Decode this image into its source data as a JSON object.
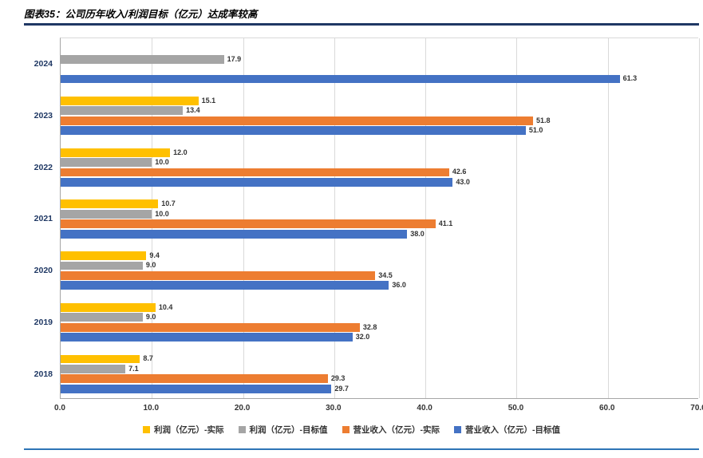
{
  "header": {
    "title": "图表35：公司历年收入/利润目标（亿元）达成率较高"
  },
  "colors": {
    "title_rule": "#1F3864",
    "bottom_rule": "#2E75B6",
    "gridline": "#D9D9D9",
    "axis_line": "#A6A6A6",
    "text_dark": "#333333",
    "cat_text": "#1F3864"
  },
  "chart_data": {
    "type": "bar",
    "orientation": "horizontal",
    "title": "图表35：公司历年收入/利润目标（亿元）达成率较高",
    "categories": [
      "2024",
      "2023",
      "2022",
      "2021",
      "2020",
      "2019",
      "2018"
    ],
    "series": [
      {
        "name": "利润（亿元）-实际",
        "color": "#FFC000",
        "values": [
          null,
          15.1,
          12.0,
          10.7,
          9.4,
          10.4,
          8.7
        ]
      },
      {
        "name": "利润（亿元）-目标值",
        "color": "#A5A5A5",
        "values": [
          17.9,
          13.4,
          10.0,
          10.0,
          9.0,
          9.0,
          7.1
        ]
      },
      {
        "name": "营业收入（亿元）-实际",
        "color": "#ED7D31",
        "values": [
          null,
          51.8,
          42.6,
          41.1,
          34.5,
          32.8,
          29.3
        ]
      },
      {
        "name": "营业收入（亿元）-目标值",
        "color": "#4472C4",
        "values": [
          61.3,
          51.0,
          43.0,
          38.0,
          36.0,
          32.0,
          29.7
        ]
      }
    ],
    "xlim": [
      0,
      70
    ],
    "xticks": [
      "0.0",
      "10.0",
      "20.0",
      "30.0",
      "40.0",
      "50.0",
      "60.0",
      "70.0"
    ],
    "value_label_decimals": 1,
    "value_labels": true,
    "gridlines": true,
    "legend_position": "bottom"
  }
}
